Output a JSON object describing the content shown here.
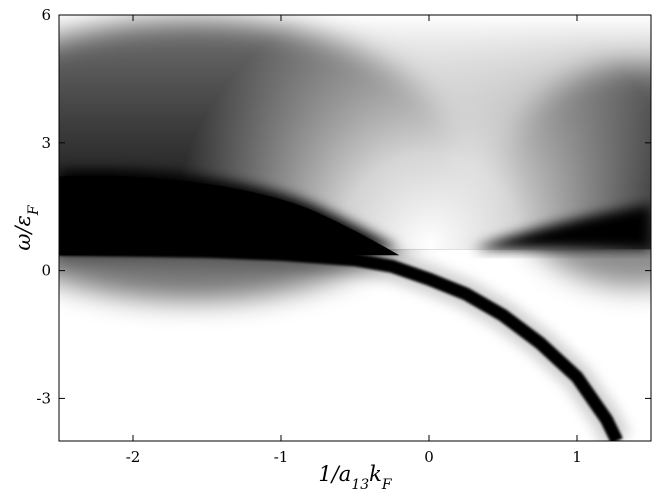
{
  "chart_data": {
    "type": "heatmap",
    "title": "",
    "xlabel": "1/a13kF",
    "ylabel": "ω/εF",
    "xlim": [
      -2.5,
      1.5
    ],
    "ylim": [
      -4,
      6
    ],
    "xticks": [
      -2,
      -1,
      0,
      1
    ],
    "yticks": [
      -3,
      0,
      3,
      6
    ],
    "colormap": "gray_r",
    "grid": false,
    "legend": "none",
    "threshold_omega": 0.5,
    "features": {
      "continuum_black_band": {
        "omega_range": [
          0.5,
          2.5
        ]
      },
      "bound_state_curve": [
        {
          "x": -2.5,
          "y": 0.5
        },
        {
          "x": -2.0,
          "y": 0.48
        },
        {
          "x": -1.5,
          "y": 0.45
        },
        {
          "x": -1.0,
          "y": 0.38
        },
        {
          "x": -0.5,
          "y": 0.25
        },
        {
          "x": -0.25,
          "y": 0.1
        },
        {
          "x": 0.0,
          "y": -0.2
        },
        {
          "x": 0.25,
          "y": -0.55
        },
        {
          "x": 0.5,
          "y": -1.05
        },
        {
          "x": 0.75,
          "y": -1.7
        },
        {
          "x": 1.0,
          "y": -2.5
        },
        {
          "x": 1.2,
          "y": -3.5
        },
        {
          "x": 1.27,
          "y": -4.0
        }
      ]
    }
  }
}
